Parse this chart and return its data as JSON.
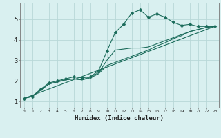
{
  "xlabel": "Humidex (Indice chaleur)",
  "background_color": "#d9f0f0",
  "grid_color": "#b8d8d8",
  "line_color": "#1a6b5a",
  "xlim": [
    -0.5,
    23.5
  ],
  "ylim": [
    0.7,
    5.8
  ],
  "xticks": [
    0,
    1,
    2,
    3,
    4,
    5,
    6,
    7,
    8,
    9,
    10,
    11,
    12,
    13,
    14,
    15,
    16,
    17,
    18,
    19,
    20,
    21,
    22,
    23
  ],
  "yticks": [
    1,
    2,
    3,
    4,
    5
  ],
  "lines": [
    {
      "x": [
        0,
        1,
        2,
        3,
        4,
        5,
        6,
        7,
        8,
        9,
        10,
        11,
        12,
        13,
        14,
        15,
        16,
        17,
        18,
        19,
        20,
        21,
        22,
        23
      ],
      "y": [
        1.15,
        1.25,
        1.6,
        1.9,
        2.0,
        2.1,
        2.2,
        2.15,
        2.2,
        2.5,
        3.45,
        4.35,
        4.75,
        5.3,
        5.45,
        5.1,
        5.25,
        5.1,
        4.85,
        4.7,
        4.75,
        4.65,
        4.65,
        4.65
      ],
      "marker": true,
      "markersize": 2.5
    },
    {
      "x": [
        0,
        1,
        2,
        3,
        4,
        5,
        6,
        7,
        8,
        9,
        10,
        11,
        12,
        13,
        14,
        15,
        16,
        17,
        18,
        19,
        20,
        21,
        22,
        23
      ],
      "y": [
        1.15,
        1.25,
        1.55,
        1.85,
        1.95,
        2.05,
        2.1,
        2.05,
        2.15,
        2.35,
        2.75,
        2.9,
        3.05,
        3.2,
        3.35,
        3.5,
        3.7,
        3.85,
        4.05,
        4.2,
        4.4,
        4.5,
        4.6,
        4.65
      ],
      "marker": false,
      "markersize": 0
    },
    {
      "x": [
        0,
        23
      ],
      "y": [
        1.15,
        4.65
      ],
      "marker": false,
      "markersize": 0
    },
    {
      "x": [
        0,
        1,
        2,
        3,
        4,
        5,
        6,
        7,
        8,
        9,
        10,
        11,
        12,
        13,
        14,
        15,
        16,
        17,
        18,
        19,
        20,
        21,
        22,
        23
      ],
      "y": [
        1.15,
        1.25,
        1.55,
        1.85,
        1.95,
        2.05,
        2.1,
        2.05,
        2.2,
        2.4,
        3.0,
        3.5,
        3.55,
        3.6,
        3.6,
        3.65,
        3.8,
        3.95,
        4.1,
        4.25,
        4.4,
        4.5,
        4.6,
        4.65
      ],
      "marker": false,
      "markersize": 0
    }
  ]
}
